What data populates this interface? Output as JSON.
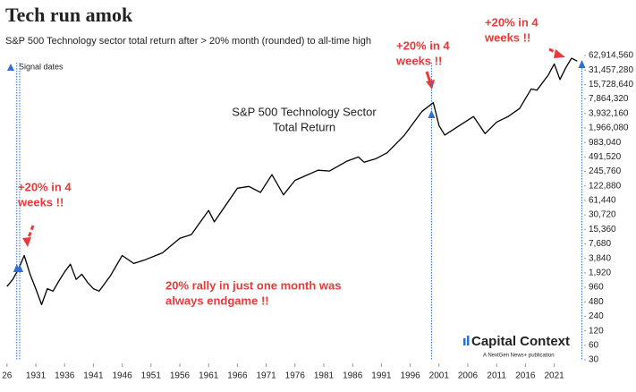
{
  "chart_data": {
    "type": "line",
    "title": "Tech run amok",
    "subtitle": "S&P 500 Technology sector total return after > 20% month (rounded) to all-time high",
    "line_label": [
      "S&P 500 Technology Sector",
      "Total Return"
    ],
    "x": [
      1926,
      1927,
      1928,
      1929,
      1930,
      1931,
      1932,
      1933,
      1934,
      1935,
      1936,
      1937,
      1938,
      1939,
      1940,
      1941,
      1942,
      1944,
      1946,
      1948,
      1950,
      1953,
      1956,
      1958,
      1961,
      1962,
      1966,
      1968,
      1970,
      1972,
      1974,
      1976,
      1980,
      1982,
      1985,
      1987,
      1988,
      1990,
      1992,
      1995,
      1998,
      2000,
      2001,
      2002,
      2004,
      2007,
      2009,
      2011,
      2013,
      2015,
      2017,
      2018,
      2020,
      2021,
      2022,
      2023,
      2024,
      2025
    ],
    "series": [
      {
        "color": "#000000",
        "values": [
          1000,
          1400,
          2300,
          4400,
          1800,
          900,
          420,
          900,
          800,
          1300,
          2000,
          2900,
          1400,
          1800,
          1200,
          900,
          800,
          1700,
          4400,
          3000,
          3600,
          5000,
          10000,
          12000,
          38000,
          22000,
          110000,
          120000,
          90000,
          210000,
          80000,
          160000,
          260000,
          250000,
          400000,
          490000,
          380000,
          450000,
          600000,
          1400000,
          4300000,
          6600000,
          2200000,
          1400000,
          2000000,
          3400000,
          1500000,
          2600000,
          3400000,
          5000000,
          12700000,
          12000000,
          25000000,
          42000000,
          20000000,
          35000000,
          55000000,
          48000000
        ]
      }
    ],
    "signals": {
      "name": "Signal dates",
      "color": "#2e6fd0",
      "x": [
        1927.7,
        1928.2,
        1999.7,
        2025.8
      ]
    },
    "log_scale": true,
    "xlim": [
      1925.5,
      2026.5
    ],
    "xticks": [
      {
        "value": 1926,
        "label": "26"
      },
      1931,
      1936,
      1941,
      1946,
      1951,
      1956,
      1961,
      1966,
      1971,
      1976,
      1981,
      1986,
      1991,
      1996,
      2001,
      2006,
      2011,
      2016,
      2021
    ],
    "ylim": [
      30,
      62914560
    ],
    "yticks": [
      30,
      60,
      120,
      240,
      480,
      960,
      {
        "value": 1920,
        "label": "1,920"
      },
      {
        "value": 3840,
        "label": "3,840"
      },
      {
        "value": 7680,
        "label": "7,680"
      },
      {
        "value": 15360,
        "label": "15,360"
      },
      {
        "value": 30720,
        "label": "30,720"
      },
      {
        "value": 61440,
        "label": "61,440"
      },
      {
        "value": 122880,
        "label": "122,880"
      },
      {
        "value": 245760,
        "label": "245,760"
      },
      {
        "value": 491520,
        "label": "491,520"
      },
      {
        "value": 983040,
        "label": "983,040"
      },
      {
        "value": 1966080,
        "label": "1,966,080"
      },
      {
        "value": 3932160,
        "label": "3,932,160"
      },
      {
        "value": 7864320,
        "label": "7,864,320"
      },
      {
        "value": 15728640,
        "label": "15,728,640"
      },
      {
        "value": 31457280,
        "label": "31,457,280"
      },
      {
        "value": 62914560,
        "label": "62,914,560"
      }
    ],
    "grid": false,
    "annotations": [
      {
        "lines": [
          "+20% in 4",
          "weeks !!"
        ],
        "color": "#e83a3a"
      },
      {
        "lines": [
          "+20% in 4",
          "weeks !!"
        ],
        "color": "#e83a3a"
      },
      {
        "lines": [
          "+20% in 4",
          "weeks !!"
        ],
        "color": "#e83a3a"
      },
      {
        "lines": [
          "20% rally in just one month was",
          "always endgame !!"
        ],
        "color": "#e83a3a"
      }
    ],
    "logo": {
      "name": "Capital Context",
      "tagline": "A NextGen News+ publication"
    }
  }
}
